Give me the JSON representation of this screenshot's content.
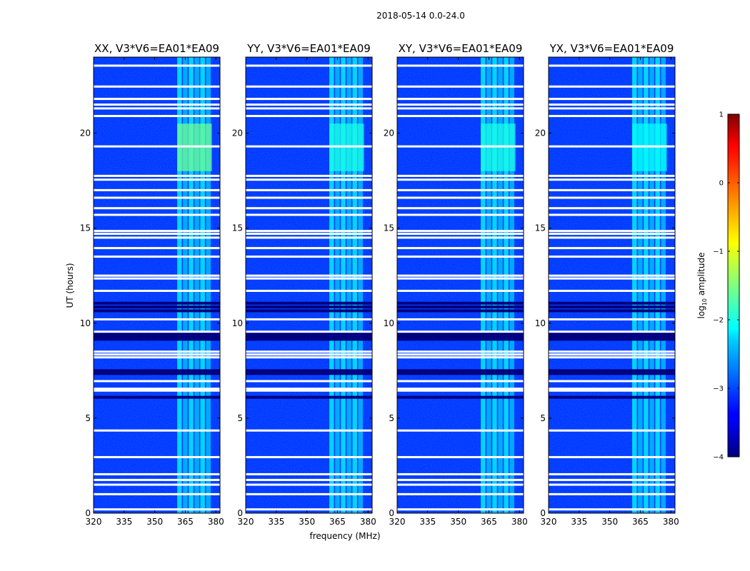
{
  "figure_title": "2018-05-14 0.0-24.0",
  "chart_data": {
    "type": "heatmap",
    "title": "2018-05-14 0.0-24.0",
    "xlabel": "frequency (MHz)",
    "ylabel": "UT (hours)",
    "xlim": [
      320,
      382
    ],
    "ylim": [
      0,
      24
    ],
    "x_ticks": [
      320,
      335,
      350,
      365,
      380
    ],
    "y_ticks": [
      0,
      5,
      10,
      15,
      20
    ],
    "colormap": "jet",
    "colorbar": {
      "label_prefix": "log",
      "label_subscript": "10",
      "label_suffix": " amplitude",
      "range": [
        -4,
        1
      ],
      "ticks": [
        -4,
        -3,
        -2,
        -1,
        0,
        1
      ],
      "tick_labels": [
        "−4",
        "−3",
        "−2",
        "−1",
        "0",
        "1"
      ]
    },
    "background_level": -3.1,
    "active_band_mhz": [
      361,
      378
    ],
    "flagged_rows_hours": [
      23.55,
      22.45,
      21.8,
      21.5,
      21.3,
      20.9,
      19.3,
      17.75,
      17.55,
      17.0,
      16.6,
      16.05,
      15.7,
      14.85,
      14.7,
      14.5,
      13.95,
      13.5,
      12.5,
      12.35,
      11.7,
      10.2,
      9.55,
      8.5,
      8.35,
      8.2,
      6.95,
      6.55,
      6.45,
      4.35,
      2.95,
      2.05,
      1.75,
      1.5,
      1.0,
      0.2
    ],
    "dark_rows_hours": [
      7.5,
      7.35,
      6.1,
      11.05,
      10.85,
      10.65,
      9.45,
      9.3,
      9.15
    ],
    "series": [
      {
        "name": "XX, V3*V6=EA01*EA09",
        "band_peak_level": -1.6,
        "peak_ut_hours": [
          18.0,
          20.5
        ]
      },
      {
        "name": "YY, V3*V6=EA01*EA09",
        "band_peak_level": -2.0,
        "peak_ut_hours": [
          18.0,
          20.5
        ]
      },
      {
        "name": "XY, V3*V6=EA01*EA09",
        "band_peak_level": -2.0,
        "peak_ut_hours": [
          18.0,
          20.5
        ]
      },
      {
        "name": "YX, V3*V6=EA01*EA09",
        "band_peak_level": -2.1,
        "peak_ut_hours": [
          18.0,
          20.5
        ]
      }
    ]
  }
}
